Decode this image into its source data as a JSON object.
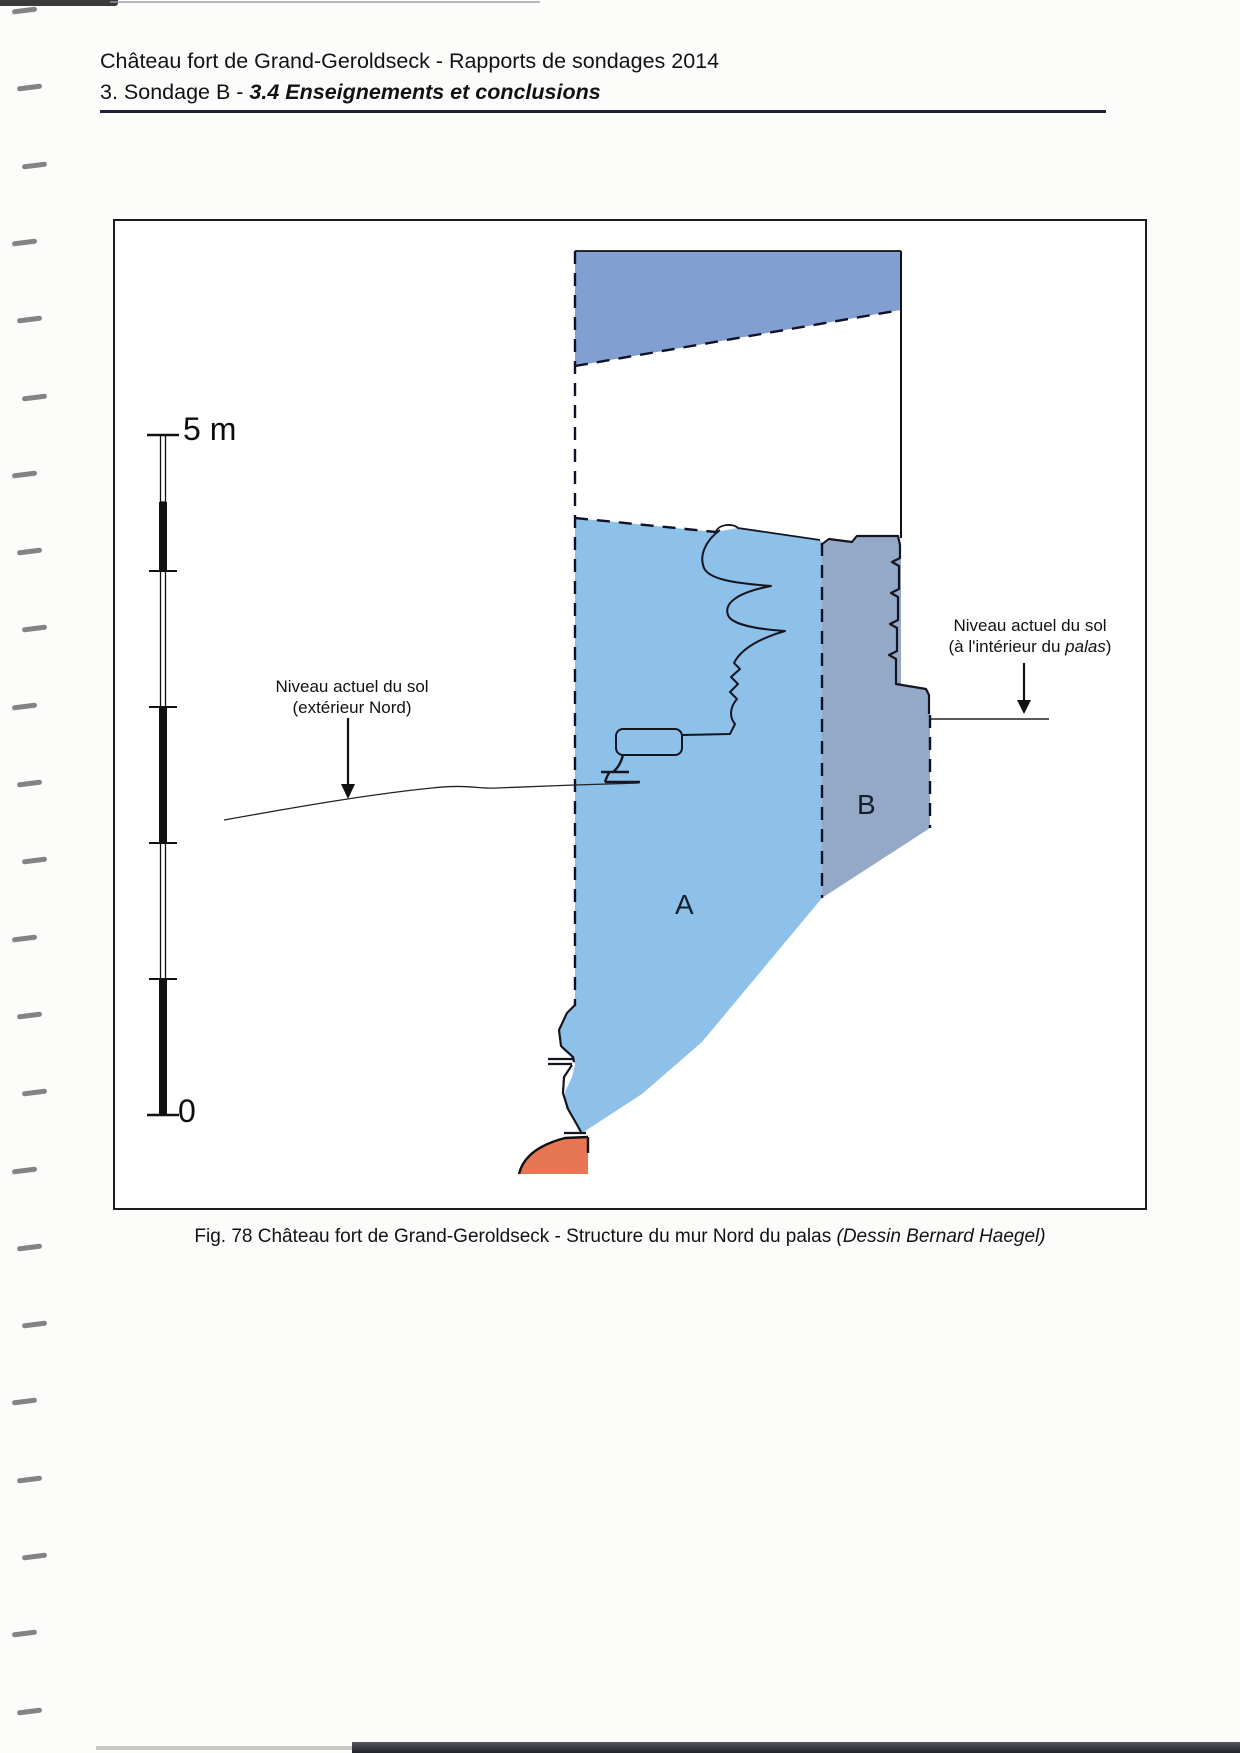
{
  "header": {
    "line1": "Château fort de Grand-Geroldseck - Rapports de sondages 2014",
    "line2_prefix": "3. Sondage B - ",
    "line2_emphasis": "3.4 Enseignements et conclusions"
  },
  "figure": {
    "scale_bar": {
      "top_label": "5 m",
      "bottom_label": "0"
    },
    "annotations": {
      "exterior_ground": {
        "line1": "Niveau actuel du sol",
        "line2": "(extérieur Nord)"
      },
      "interior_ground": {
        "line1": "Niveau actuel du sol",
        "line2_pre": "(à l'intérieur du ",
        "line2_italic": "palas",
        "line2_post": ")"
      },
      "zone_a_label": "A",
      "zone_b_label": "B"
    },
    "colors": {
      "zone_a_fill": "#8dc1ea",
      "zone_b_fill": "#94a9c8",
      "upper_wall_fill": "#81a0d1",
      "bedrock_fill": "#e77754"
    }
  },
  "caption": {
    "text": "Fig. 78 Château fort de Grand-Geroldseck - Structure du mur Nord du palas ",
    "italic": "(Dessin Bernard Haegel)"
  }
}
